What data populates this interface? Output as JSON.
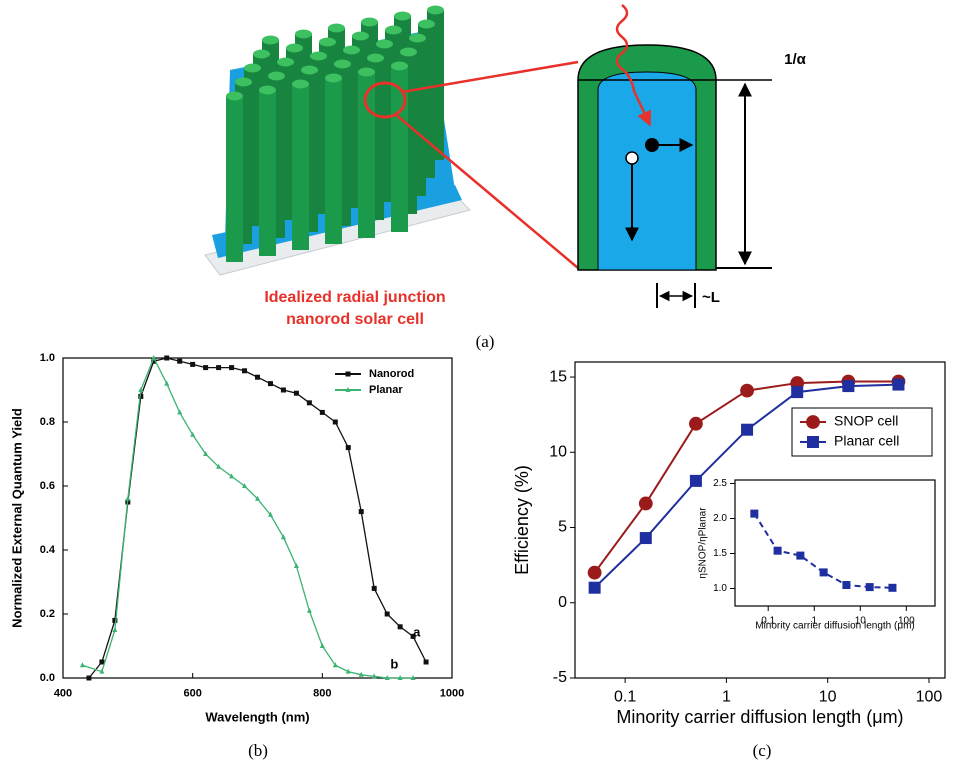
{
  "diagram": {
    "label_absorption": "1/α",
    "label_diffusion": "~L",
    "caption_lines": [
      "Idealized radial junction",
      "nanorod solar cell"
    ]
  },
  "panel_labels": [
    "(a)",
    "(b)",
    "(c)"
  ],
  "chart_data": [
    {
      "type": "line",
      "x_label": "Wavelength (nm)",
      "y_label": "Normalized External Quantum Yield",
      "xlim": [
        400,
        1000
      ],
      "xticks": [
        400,
        600,
        800,
        1000
      ],
      "ylim": [
        0,
        1.0
      ],
      "yticks": [
        {
          "value": 0,
          "label": "0.0"
        },
        0.2,
        0.4,
        0.6,
        0.8,
        {
          "value": 1,
          "label": "1.0"
        }
      ],
      "legend": "upper right",
      "annotations": [
        "a",
        "b"
      ],
      "series": [
        {
          "name": "Nanorod",
          "color": "#111111",
          "marker": "square",
          "x": [
            440,
            460,
            480,
            500,
            520,
            540,
            560,
            580,
            600,
            620,
            640,
            660,
            680,
            700,
            720,
            740,
            760,
            780,
            800,
            820,
            840,
            860,
            880,
            900,
            920,
            940,
            960
          ],
          "values": [
            0.0,
            0.05,
            0.18,
            0.55,
            0.88,
            0.99,
            1.0,
            0.99,
            0.98,
            0.97,
            0.97,
            0.97,
            0.96,
            0.94,
            0.92,
            0.9,
            0.89,
            0.86,
            0.83,
            0.8,
            0.72,
            0.52,
            0.28,
            0.2,
            0.16,
            0.13,
            0.05
          ]
        },
        {
          "name": "Planar",
          "color": "#3cb371",
          "marker": "triangle",
          "x": [
            430,
            460,
            480,
            500,
            520,
            540,
            560,
            580,
            600,
            620,
            640,
            660,
            680,
            700,
            720,
            740,
            760,
            780,
            800,
            820,
            840,
            860,
            880,
            900,
            920,
            940
          ],
          "values": [
            0.04,
            0.02,
            0.15,
            0.56,
            0.9,
            1.0,
            0.92,
            0.83,
            0.76,
            0.7,
            0.66,
            0.63,
            0.6,
            0.56,
            0.51,
            0.44,
            0.35,
            0.21,
            0.1,
            0.04,
            0.02,
            0.01,
            0.005,
            0.0,
            0.0,
            0.0
          ]
        }
      ]
    },
    {
      "type": "line",
      "x_label": "Minority carrier diffusion length (μm)",
      "y_label": "Efficiency (%)",
      "xlog": true,
      "xlim": [
        0.032,
        144
      ],
      "xticks": [
        0.1,
        1,
        10,
        100
      ],
      "ylim": [
        -5,
        16
      ],
      "yticks": [
        -5,
        0,
        5,
        10,
        15
      ],
      "legend": "upper right",
      "x": [
        0.05,
        0.16,
        0.5,
        1.6,
        5,
        16,
        50
      ],
      "series": [
        {
          "name": "SNOP cell",
          "color": "#9b1b1b",
          "marker": "circle",
          "values": [
            2.0,
            6.6,
            11.9,
            14.1,
            14.6,
            14.7,
            14.7
          ]
        },
        {
          "name": "Planar cell",
          "color": "#1f2f9f",
          "marker": "square",
          "values": [
            1.0,
            4.3,
            8.1,
            11.5,
            14.0,
            14.4,
            14.5
          ]
        }
      ]
    },
    {
      "type": "line",
      "x_label": "Minority carrier diffusion length (μm)",
      "y_label": "ηSNOP/ηPlanar",
      "xlog": true,
      "xlim": [
        0.019,
        420
      ],
      "xticks": [
        0.1,
        1,
        10,
        100
      ],
      "ylim": [
        0.75,
        2.55
      ],
      "yticks": [
        {
          "value": 1,
          "label": "1.0"
        },
        1.5,
        {
          "value": 2,
          "label": "2.0"
        },
        2.5
      ],
      "x": [
        0.05,
        0.16,
        0.5,
        1.6,
        5,
        16,
        50
      ],
      "series": [
        {
          "color": "#1f2f9f",
          "marker": "square",
          "line_style": "dashed",
          "values": [
            2.07,
            1.54,
            1.47,
            1.23,
            1.05,
            1.02,
            1.01
          ]
        }
      ]
    }
  ]
}
